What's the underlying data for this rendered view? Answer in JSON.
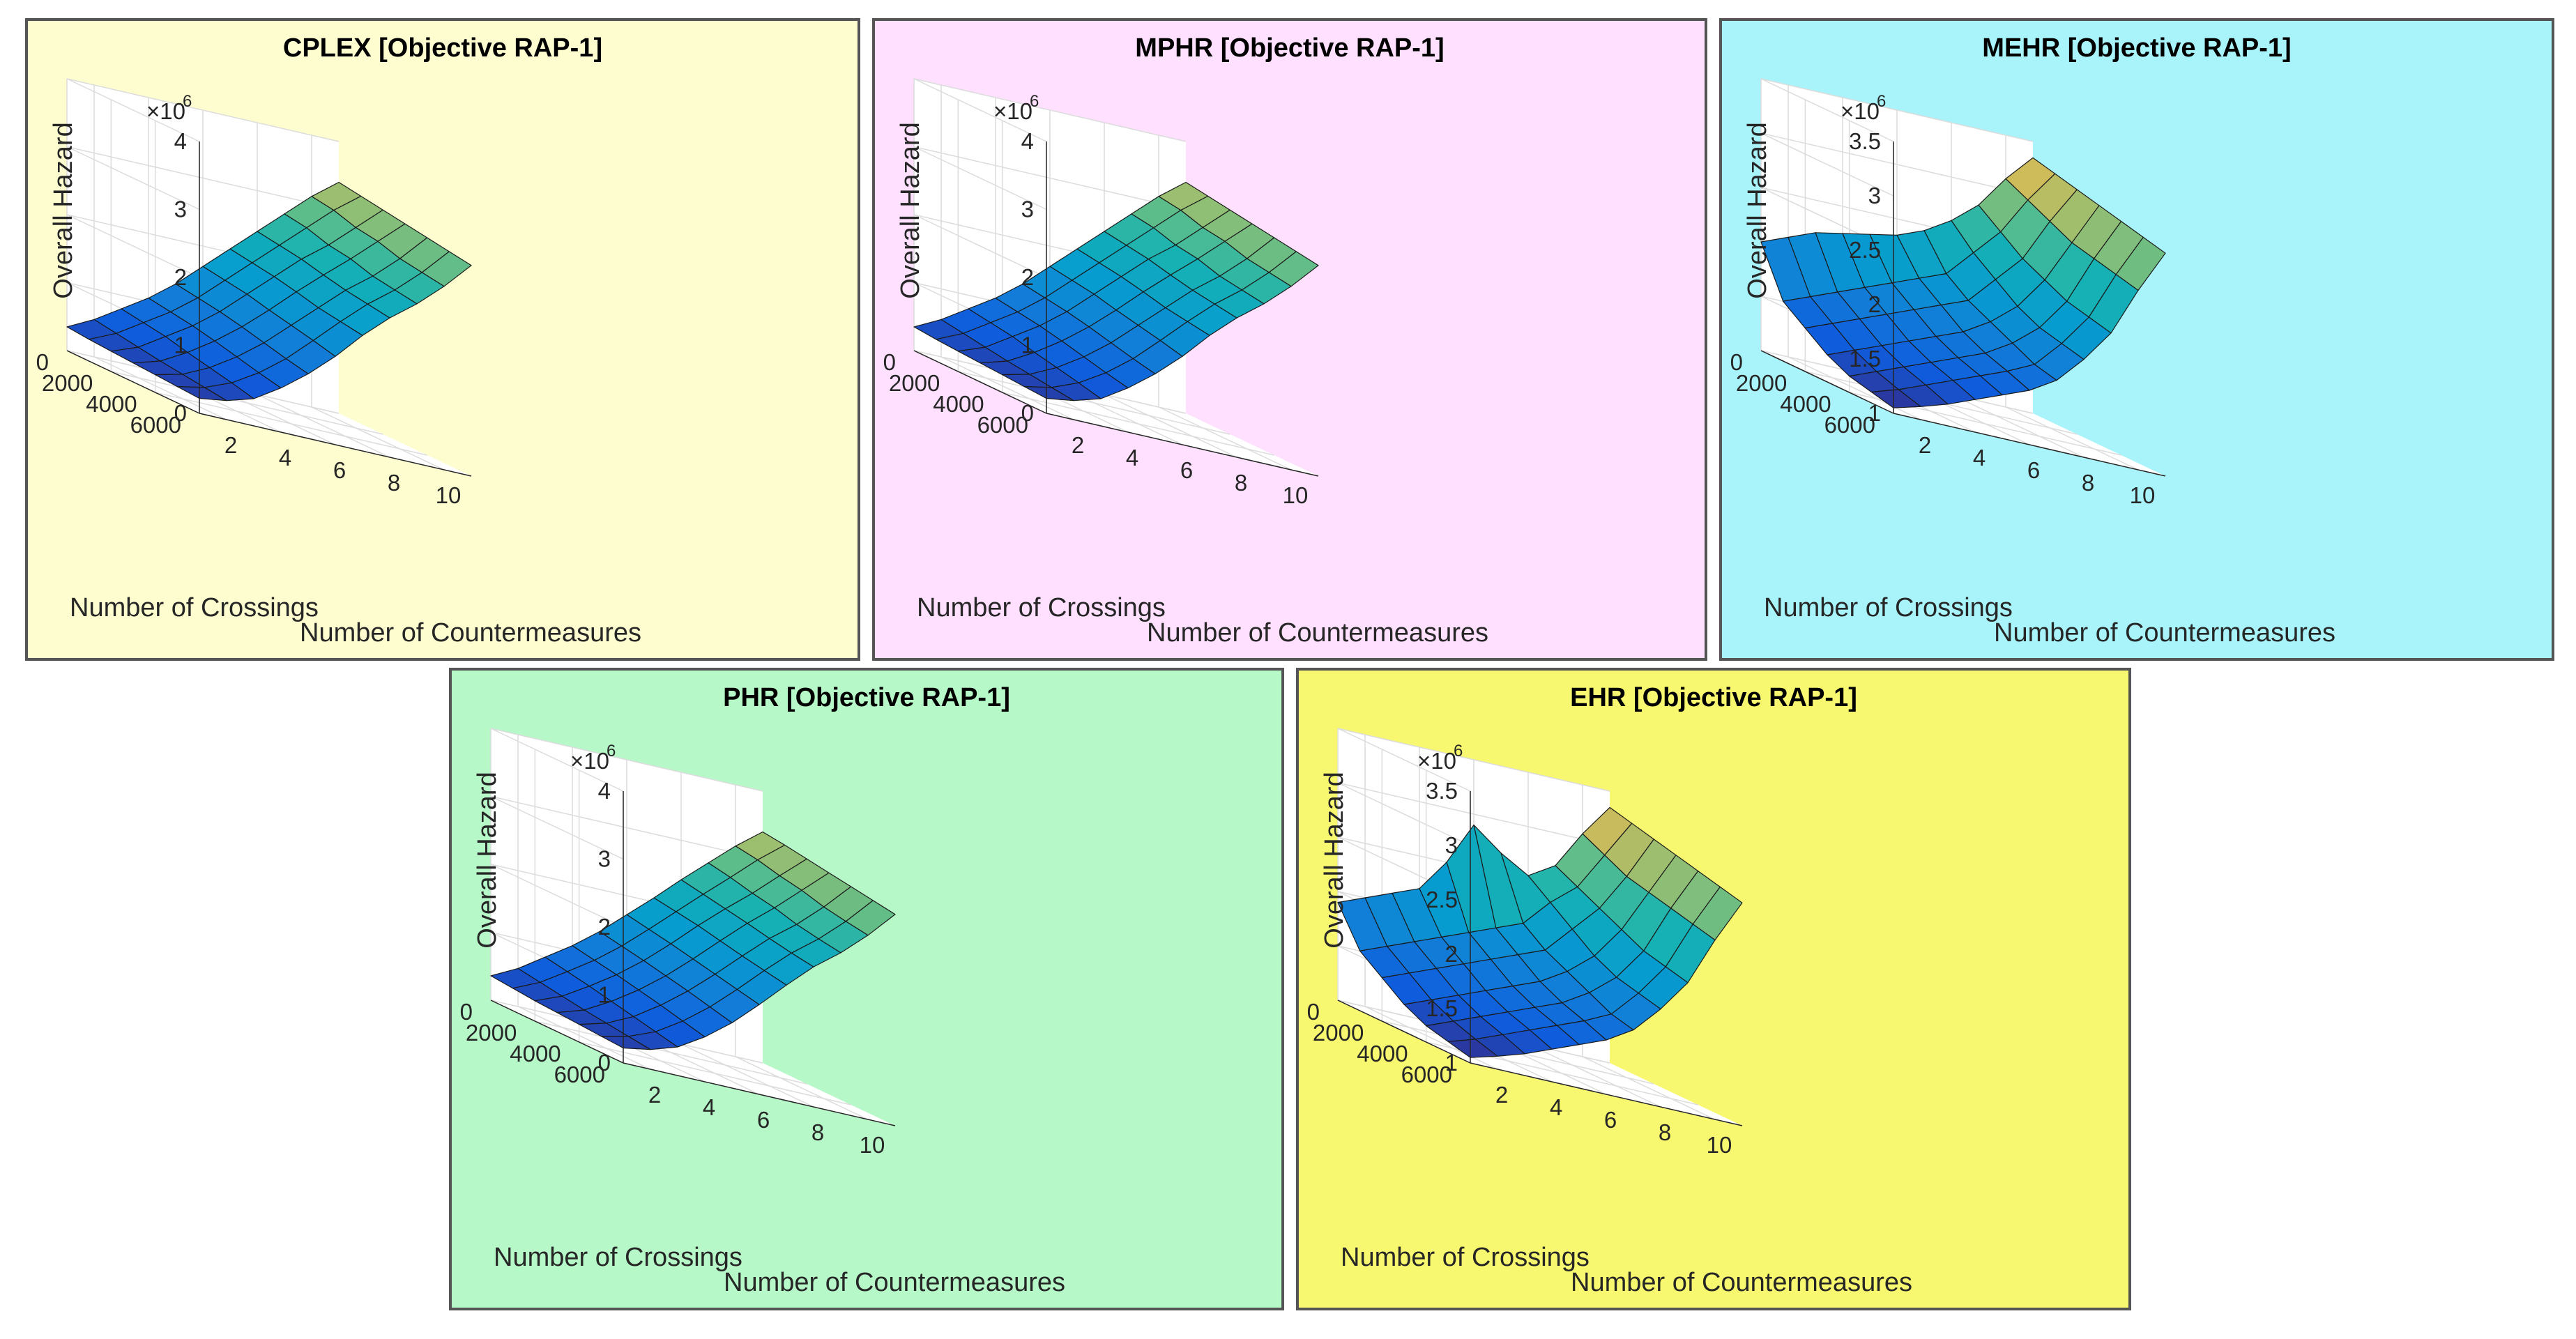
{
  "chart_data": [
    {
      "id": "cplex",
      "type": "surface3d",
      "title": "CPLEX [Objective RAP-1]",
      "background": "#fdfdd0",
      "xlabel": "Number of Countermeasures",
      "ylabel": "Number of Crossings",
      "zlabel": "Overall Hazard",
      "z_exponent_label": "×10",
      "z_exponent": "6",
      "xticks": [
        "2",
        "4",
        "6",
        "8",
        "10"
      ],
      "yticks": [
        "0",
        "2000",
        "4000",
        "6000"
      ],
      "zticks": [
        "0",
        "1",
        "2",
        "3",
        "4"
      ],
      "zlim": [
        0,
        4
      ],
      "countermeasures": [
        1,
        2,
        3,
        4,
        5,
        6,
        7,
        8,
        9,
        10,
        11
      ],
      "crossings": [
        0,
        1000,
        2000,
        3000,
        4000,
        5000,
        6000
      ],
      "z": [
        [
          0.35,
          0.32,
          0.3,
          0.28,
          0.26,
          0.24,
          0.22
        ],
        [
          0.55,
          0.5,
          0.45,
          0.4,
          0.36,
          0.32,
          0.28
        ],
        [
          0.8,
          0.75,
          0.7,
          0.62,
          0.55,
          0.48,
          0.4
        ],
        [
          1.05,
          1.0,
          0.95,
          0.88,
          0.8,
          0.72,
          0.65
        ],
        [
          1.35,
          1.3,
          1.25,
          1.18,
          1.1,
          1.02,
          0.95
        ],
        [
          1.7,
          1.65,
          1.6,
          1.52,
          1.45,
          1.38,
          1.3
        ],
        [
          2.05,
          2.0,
          1.95,
          1.88,
          1.8,
          1.75,
          1.7
        ],
        [
          2.4,
          2.35,
          2.3,
          2.22,
          2.15,
          2.1,
          2.05
        ],
        [
          2.75,
          2.7,
          2.6,
          2.55,
          2.45,
          2.4,
          2.35
        ],
        [
          3.1,
          3.05,
          2.95,
          2.9,
          2.8,
          2.75,
          2.7
        ],
        [
          3.4,
          3.35,
          3.3,
          3.25,
          3.2,
          3.15,
          3.1
        ]
      ]
    },
    {
      "id": "mphr",
      "type": "surface3d",
      "title": "MPHR [Objective RAP-1]",
      "background": "#ffe0ff",
      "xlabel": "Number of Countermeasures",
      "ylabel": "Number of Crossings",
      "zlabel": "Overall Hazard",
      "z_exponent_label": "×10",
      "z_exponent": "6",
      "xticks": [
        "2",
        "4",
        "6",
        "8",
        "10"
      ],
      "yticks": [
        "0",
        "2000",
        "4000",
        "6000"
      ],
      "zticks": [
        "0",
        "1",
        "2",
        "3",
        "4"
      ],
      "zlim": [
        0,
        4
      ],
      "countermeasures": [
        1,
        2,
        3,
        4,
        5,
        6,
        7,
        8,
        9,
        10,
        11
      ],
      "crossings": [
        0,
        1000,
        2000,
        3000,
        4000,
        5000,
        6000
      ],
      "z": [
        [
          0.35,
          0.32,
          0.3,
          0.28,
          0.26,
          0.24,
          0.22
        ],
        [
          0.55,
          0.5,
          0.45,
          0.4,
          0.36,
          0.32,
          0.28
        ],
        [
          0.8,
          0.75,
          0.7,
          0.62,
          0.55,
          0.48,
          0.4
        ],
        [
          1.05,
          1.0,
          0.95,
          0.88,
          0.8,
          0.72,
          0.65
        ],
        [
          1.35,
          1.3,
          1.25,
          1.18,
          1.1,
          1.02,
          0.95
        ],
        [
          1.7,
          1.65,
          1.6,
          1.52,
          1.45,
          1.38,
          1.3
        ],
        [
          2.05,
          2.0,
          1.95,
          1.88,
          1.8,
          1.75,
          1.7
        ],
        [
          2.4,
          2.35,
          2.3,
          2.22,
          2.15,
          2.1,
          2.05
        ],
        [
          2.75,
          2.7,
          2.6,
          2.55,
          2.45,
          2.4,
          2.35
        ],
        [
          3.1,
          3.05,
          2.95,
          2.9,
          2.8,
          2.75,
          2.7
        ],
        [
          3.4,
          3.35,
          3.3,
          3.25,
          3.2,
          3.15,
          3.1
        ]
      ]
    },
    {
      "id": "mehr",
      "type": "surface3d",
      "title": "MEHR [Objective RAP-1]",
      "background": "#a8f4fa",
      "xlabel": "Number of Countermeasures",
      "ylabel": "Number of Crossings",
      "zlabel": "Overall Hazard",
      "z_exponent_label": "×10",
      "z_exponent": "6",
      "xticks": [
        "2",
        "4",
        "6",
        "8",
        "10"
      ],
      "yticks": [
        "0",
        "2000",
        "4000",
        "6000"
      ],
      "zticks": [
        "1",
        "1.5",
        "2",
        "2.5",
        "3",
        "3.5"
      ],
      "zlim": [
        1,
        3.5
      ],
      "countermeasures": [
        1,
        2,
        3,
        4,
        5,
        6,
        7,
        8,
        9,
        10,
        11
      ],
      "crossings": [
        0,
        1000,
        2000,
        3000,
        4000,
        5000,
        6000
      ],
      "z": [
        [
          2.0,
          1.55,
          1.4,
          1.25,
          1.15,
          1.1,
          1.05
        ],
        [
          2.1,
          1.65,
          1.5,
          1.35,
          1.25,
          1.18,
          1.12
        ],
        [
          2.2,
          1.75,
          1.6,
          1.45,
          1.35,
          1.28,
          1.2
        ],
        [
          2.25,
          1.85,
          1.7,
          1.55,
          1.45,
          1.38,
          1.3
        ],
        [
          2.3,
          1.95,
          1.8,
          1.65,
          1.55,
          1.48,
          1.4
        ],
        [
          2.35,
          2.05,
          1.9,
          1.75,
          1.65,
          1.58,
          1.5
        ],
        [
          2.45,
          2.15,
          2.0,
          1.9,
          1.8,
          1.7,
          1.65
        ],
        [
          2.6,
          2.4,
          2.25,
          2.1,
          2.0,
          1.95,
          1.9
        ],
        [
          2.8,
          2.65,
          2.5,
          2.4,
          2.3,
          2.25,
          2.2
        ],
        [
          3.1,
          3.0,
          2.9,
          2.8,
          2.75,
          2.7,
          2.65
        ],
        [
          3.35,
          3.3,
          3.25,
          3.2,
          3.15,
          3.1,
          3.05
        ]
      ]
    },
    {
      "id": "phr",
      "type": "surface3d",
      "title": "PHR [Objective RAP-1]",
      "background": "#b6f8c8",
      "xlabel": "Number of Countermeasures",
      "ylabel": "Number of Crossings",
      "zlabel": "Overall Hazard",
      "z_exponent_label": "×10",
      "z_exponent": "6",
      "xticks": [
        "2",
        "4",
        "6",
        "8",
        "10"
      ],
      "yticks": [
        "0",
        "2000",
        "4000",
        "6000"
      ],
      "zticks": [
        "0",
        "1",
        "2",
        "3",
        "4"
      ],
      "zlim": [
        0,
        4
      ],
      "countermeasures": [
        1,
        2,
        3,
        4,
        5,
        6,
        7,
        8,
        9,
        10,
        11
      ],
      "crossings": [
        0,
        1000,
        2000,
        3000,
        4000,
        5000,
        6000
      ],
      "z": [
        [
          0.36,
          0.33,
          0.3,
          0.28,
          0.26,
          0.24,
          0.22
        ],
        [
          0.56,
          0.51,
          0.46,
          0.41,
          0.37,
          0.33,
          0.29
        ],
        [
          0.82,
          0.76,
          0.7,
          0.63,
          0.56,
          0.49,
          0.42
        ],
        [
          1.08,
          1.02,
          0.96,
          0.89,
          0.82,
          0.74,
          0.66
        ],
        [
          1.38,
          1.32,
          1.26,
          1.19,
          1.12,
          1.04,
          0.96
        ],
        [
          1.72,
          1.66,
          1.6,
          1.53,
          1.46,
          1.39,
          1.32
        ],
        [
          2.06,
          2.01,
          1.96,
          1.89,
          1.82,
          1.76,
          1.7
        ],
        [
          2.42,
          2.36,
          2.3,
          2.24,
          2.17,
          2.11,
          2.06
        ],
        [
          2.76,
          2.7,
          2.62,
          2.56,
          2.47,
          2.41,
          2.36
        ],
        [
          3.1,
          3.05,
          2.97,
          2.91,
          2.82,
          2.76,
          2.71
        ],
        [
          3.4,
          3.36,
          3.31,
          3.26,
          3.21,
          3.16,
          3.11
        ]
      ]
    },
    {
      "id": "ehr",
      "type": "surface3d",
      "title": "EHR [Objective RAP-1]",
      "background": "#f8f870",
      "xlabel": "Number of Countermeasures",
      "ylabel": "Number of Crossings",
      "zlabel": "Overall Hazard",
      "z_exponent_label": "×10",
      "z_exponent": "6",
      "xticks": [
        "2",
        "4",
        "6",
        "8",
        "10"
      ],
      "yticks": [
        "0",
        "2000",
        "4000",
        "6000"
      ],
      "zticks": [
        "1",
        "1.5",
        "2",
        "2.5",
        "3",
        "3.5"
      ],
      "zlim": [
        1,
        3.5
      ],
      "countermeasures": [
        1,
        2,
        3,
        4,
        5,
        6,
        7,
        8,
        9,
        10,
        11
      ],
      "crossings": [
        0,
        1000,
        2000,
        3000,
        4000,
        5000,
        6000
      ],
      "z": [
        [
          1.9,
          1.55,
          1.4,
          1.25,
          1.15,
          1.1,
          1.05
        ],
        [
          2.0,
          1.65,
          1.5,
          1.35,
          1.25,
          1.18,
          1.12
        ],
        [
          2.1,
          1.75,
          1.6,
          1.45,
          1.35,
          1.28,
          1.2
        ],
        [
          2.2,
          1.85,
          1.7,
          1.55,
          1.45,
          1.38,
          1.3
        ],
        [
          2.5,
          1.95,
          1.8,
          1.65,
          1.55,
          1.48,
          1.4
        ],
        [
          2.9,
          2.05,
          1.9,
          1.75,
          1.65,
          1.58,
          1.5
        ],
        [
          2.7,
          2.15,
          2.0,
          1.9,
          1.8,
          1.7,
          1.65
        ],
        [
          2.55,
          2.4,
          2.25,
          2.1,
          2.0,
          1.95,
          1.9
        ],
        [
          2.7,
          2.6,
          2.5,
          2.4,
          2.3,
          2.25,
          2.2
        ],
        [
          3.05,
          2.95,
          2.85,
          2.8,
          2.75,
          2.7,
          2.65
        ],
        [
          3.35,
          3.3,
          3.25,
          3.2,
          3.15,
          3.1,
          3.05
        ]
      ]
    }
  ]
}
